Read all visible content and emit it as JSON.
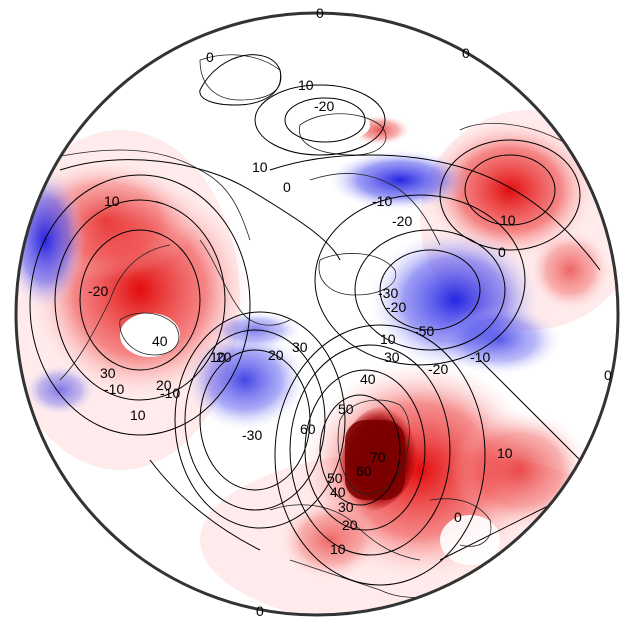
{
  "map": {
    "projection": "polar-stereographic-north",
    "shading": {
      "positive_color": "#e00000",
      "negative_color": "#1a1ae0",
      "strong_positive_color": "#7a0000"
    },
    "contour_labels": [
      "0",
      "0",
      "0",
      "10",
      "-20",
      "10",
      "-10",
      "-20",
      "10",
      "-10",
      "0",
      "0",
      "10",
      "-20",
      "-30",
      "-20",
      "-50",
      "10",
      "-10",
      "30",
      "-20",
      "20",
      "40",
      "40",
      "30",
      "20",
      "10",
      "10",
      "20",
      "30",
      "-30",
      "50",
      "60",
      "60",
      "70",
      "50",
      "40",
      "30",
      "20",
      "10",
      "0",
      "10",
      "-10",
      "0",
      "0"
    ]
  }
}
